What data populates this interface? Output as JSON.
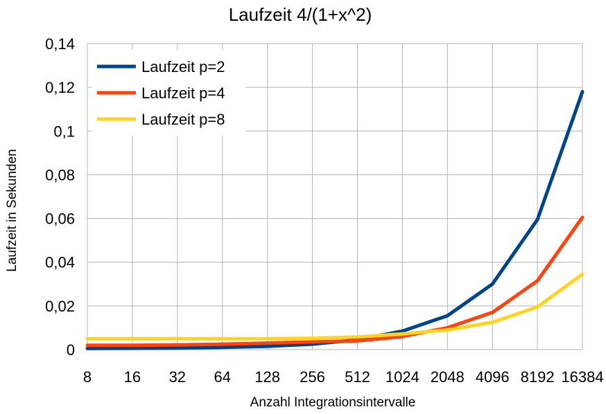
{
  "chart_data": {
    "type": "line",
    "title": "Laufzeit 4/(1+x^2)",
    "xlabel": "Anzahl Integrationsintervalle",
    "ylabel": "Laufzeit in Sekunden",
    "categories": [
      "8",
      "16",
      "32",
      "64",
      "128",
      "256",
      "512",
      "1024",
      "2048",
      "4096",
      "8192",
      "16384"
    ],
    "y_ticks": [
      "0",
      "0,02",
      "0,04",
      "0,06",
      "0,08",
      "0,1",
      "0,12",
      "0,14"
    ],
    "ylim": [
      0,
      0.14
    ],
    "grid": true,
    "legend_position": "top-left",
    "series": [
      {
        "name": "Laufzeit p=2",
        "color": "#004586",
        "values": [
          0.0005,
          0.0006,
          0.0007,
          0.001,
          0.0015,
          0.0025,
          0.0045,
          0.0085,
          0.0155,
          0.03,
          0.0595,
          0.118
        ]
      },
      {
        "name": "Laufzeit p=4",
        "color": "#ff420e",
        "values": [
          0.002,
          0.002,
          0.0022,
          0.0025,
          0.003,
          0.0035,
          0.004,
          0.006,
          0.01,
          0.017,
          0.0315,
          0.0605
        ]
      },
      {
        "name": "Laufzeit p=8",
        "color": "#ffd320",
        "values": [
          0.005,
          0.005,
          0.005,
          0.005,
          0.005,
          0.0052,
          0.0058,
          0.0072,
          0.009,
          0.0125,
          0.0195,
          0.0345
        ]
      }
    ]
  }
}
